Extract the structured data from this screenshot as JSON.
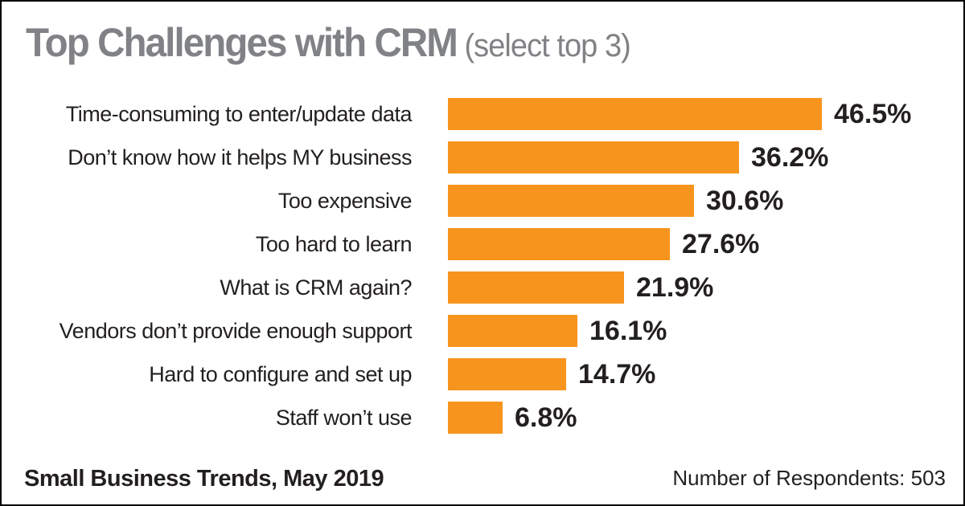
{
  "title": {
    "main": "Top Challenges with CRM",
    "subtitle": "(select top 3)"
  },
  "chart_data": {
    "type": "bar",
    "orientation": "horizontal",
    "title": "Top Challenges with CRM (select top 3)",
    "categories": [
      "Time-consuming to enter/update data",
      "Don’t know how it helps MY business",
      "Too expensive",
      "Too hard to learn",
      "What is CRM again?",
      "Vendors don’t provide enough support",
      "Hard to configure and set up",
      "Staff won’t use"
    ],
    "values": [
      46.5,
      36.2,
      30.6,
      27.6,
      21.9,
      16.1,
      14.7,
      6.8
    ],
    "value_suffix": "%",
    "xlim": [
      0,
      50
    ],
    "grid": false,
    "legend": false,
    "bar_color": "#F7941E"
  },
  "footer": {
    "source": "Small Business Trends, May 2019",
    "respondents": "Number of Respondents: 503"
  },
  "colors": {
    "bar": "#F7941E",
    "title": "#808285",
    "text": "#231F20",
    "background": "#FFFFFF",
    "border": "#000000"
  }
}
